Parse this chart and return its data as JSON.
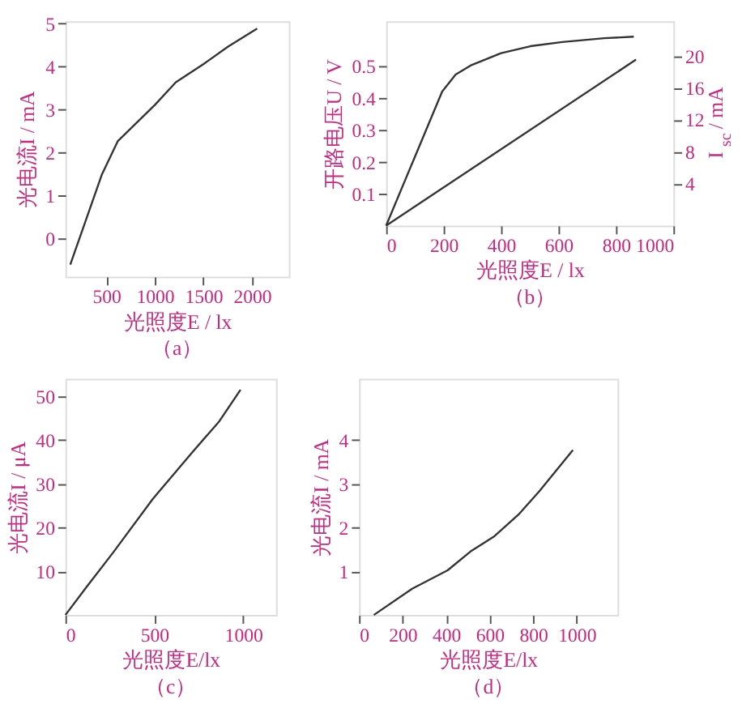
{
  "chart_data": [
    {
      "type": "line",
      "xlabel": "光照度E / lx",
      "ylabel": "光电流I / mA",
      "annotations": [
        "（a）"
      ],
      "xlim": [
        80,
        2380
      ],
      "xticks": [
        500,
        1000,
        1500,
        2000
      ],
      "ylim": [
        -0.9,
        5.05
      ],
      "yticks": [
        0,
        1,
        2,
        3,
        4,
        5
      ],
      "grid": false,
      "marker": "none",
      "line_style": "solid",
      "series": [
        {
          "color": "#333333",
          "x": [
            130,
            457,
            620,
            1000,
            1217,
            1500,
            1755,
            2054
          ],
          "values": [
            -0.62,
            1.49,
            2.26,
            3.1,
            3.63,
            4.05,
            4.46,
            4.88
          ]
        }
      ]
    },
    {
      "type": "line",
      "xlabel": "光照度E / lx",
      "ylabel": "开路电压U / V",
      "y2label": "I$_{sc}$ / mA",
      "annotations": [
        "（b）"
      ],
      "xlim": [
        0,
        1000
      ],
      "xticks": [
        0,
        200,
        400,
        600,
        800,
        1000
      ],
      "ylim": [
        0,
        0.64
      ],
      "yticks": [
        0.1,
        0.2,
        0.3,
        0.4,
        0.5
      ],
      "y2lim": [
        -1.3,
        24.3
      ],
      "y2ticks": [
        4,
        8,
        12,
        16,
        20
      ],
      "grid": false,
      "marker": "none",
      "line_style": "solid",
      "series": [
        {
          "color": "#333333",
          "x": [
            0,
            195,
            242,
            297,
            400,
            502,
            613,
            760,
            862
          ],
          "values": [
            0,
            0.42,
            0.473,
            0.503,
            0.54,
            0.562,
            0.575,
            0.587,
            0.592
          ]
        },
        {
          "color": "#333333",
          "axis": "y2",
          "x": [
            0,
            870
          ],
          "values": [
            -1.3,
            19.5
          ]
        }
      ]
    },
    {
      "type": "line",
      "xlabel": "光照度E/lx",
      "ylabel": "光电流I / μA",
      "annotations": [
        "（c）"
      ],
      "xlim": [
        0,
        1185
      ],
      "xticks": [
        0,
        500,
        1000
      ],
      "ylim": [
        0,
        54
      ],
      "yticks": [
        10,
        20,
        30,
        40,
        50
      ],
      "grid": false,
      "marker": "none",
      "line_style": "solid",
      "series": [
        {
          "color": "#333333",
          "x": [
            0,
            119,
            269,
            493,
            716,
            866,
            985
          ],
          "values": [
            0,
            6.4,
            14.3,
            26.6,
            37.3,
            44.3,
            51.5
          ]
        }
      ]
    },
    {
      "type": "line",
      "xlabel": "光照度E/lx",
      "ylabel": "光电流I / mA",
      "annotations": [
        "（d）"
      ],
      "xlim": [
        0,
        1188
      ],
      "xticks": [
        0,
        200,
        400,
        600,
        800,
        1000
      ],
      "ylim": [
        0,
        5.4
      ],
      "yticks": [
        1,
        2,
        3,
        4
      ],
      "grid": false,
      "marker": "none",
      "line_style": "solid",
      "series": [
        {
          "color": "#333333",
          "x": [
            68,
            244,
            407,
            512,
            622,
            732,
            829,
            983
          ],
          "values": [
            0,
            0.6,
            1.02,
            1.45,
            1.8,
            2.29,
            2.83,
            3.77
          ]
        }
      ]
    }
  ]
}
